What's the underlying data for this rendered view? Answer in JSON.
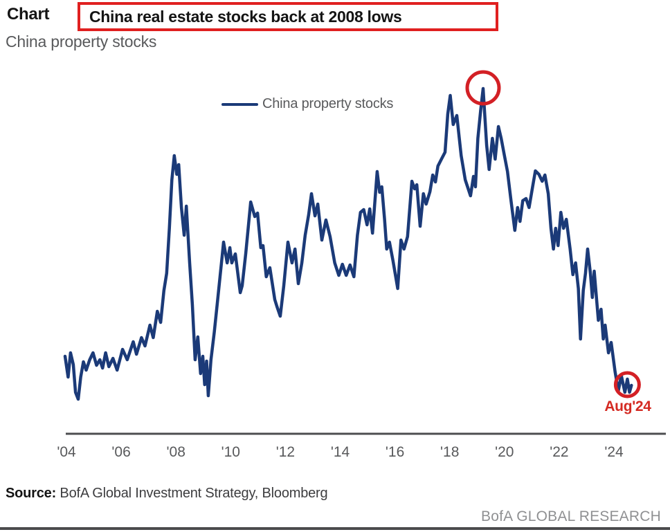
{
  "header": {
    "chart_label": "Chart",
    "title": "China real estate stocks back at 2008 lows",
    "subtitle": "China property stocks",
    "title_box_color": "#e02020"
  },
  "footer": {
    "source_label": "Source:",
    "source_text": " BofA Global Investment Strategy, Bloomberg",
    "branding": "BofA GLOBAL RESEARCH"
  },
  "chart_data": {
    "type": "line",
    "title": "China real estate stocks back at 2008 lows",
    "xlabel": "",
    "ylabel": "",
    "y_axis_shown": false,
    "grid": false,
    "legend_position": "top-center",
    "x_axis": {
      "tick_labels": [
        "'04",
        "'06",
        "'08",
        "'10",
        "'12",
        "'14",
        "'16",
        "'18",
        "'20",
        "'22",
        "'24"
      ],
      "tick_years": [
        2004,
        2006,
        2008,
        2010,
        2012,
        2014,
        2016,
        2018,
        2020,
        2022,
        2024
      ],
      "range": [
        2003.9,
        2024.8
      ]
    },
    "ylim": [
      0,
      105
    ],
    "series": [
      {
        "name": "China property stocks",
        "color": "#1b3a78",
        "points": [
          [
            2003.95,
            22.2
          ],
          [
            2004.06,
            16.2
          ],
          [
            2004.15,
            23.2
          ],
          [
            2004.25,
            19.8
          ],
          [
            2004.33,
            11.8
          ],
          [
            2004.43,
            9.8
          ],
          [
            2004.52,
            16.2
          ],
          [
            2004.62,
            20.6
          ],
          [
            2004.72,
            18.2
          ],
          [
            2004.85,
            21.2
          ],
          [
            2004.97,
            23.2
          ],
          [
            2005.1,
            19.6
          ],
          [
            2005.22,
            21.2
          ],
          [
            2005.32,
            18.8
          ],
          [
            2005.43,
            23.2
          ],
          [
            2005.55,
            19.2
          ],
          [
            2005.7,
            21.6
          ],
          [
            2005.85,
            18.2
          ],
          [
            2006.05,
            24.2
          ],
          [
            2006.22,
            21.2
          ],
          [
            2006.44,
            26.4
          ],
          [
            2006.56,
            22.8
          ],
          [
            2006.74,
            27.6
          ],
          [
            2006.87,
            25.2
          ],
          [
            2007.05,
            31.2
          ],
          [
            2007.17,
            27.6
          ],
          [
            2007.32,
            35.2
          ],
          [
            2007.44,
            32.0
          ],
          [
            2007.56,
            41.2
          ],
          [
            2007.66,
            46.2
          ],
          [
            2007.76,
            59.2
          ],
          [
            2007.85,
            73.2
          ],
          [
            2007.94,
            80.2
          ],
          [
            2008.03,
            74.8
          ],
          [
            2008.1,
            77.6
          ],
          [
            2008.2,
            65.2
          ],
          [
            2008.3,
            57.2
          ],
          [
            2008.38,
            65.6
          ],
          [
            2008.5,
            49.2
          ],
          [
            2008.6,
            37.2
          ],
          [
            2008.7,
            21.2
          ],
          [
            2008.8,
            27.8
          ],
          [
            2008.9,
            17.2
          ],
          [
            2008.98,
            22.2
          ],
          [
            2009.05,
            14.0
          ],
          [
            2009.12,
            20.8
          ],
          [
            2009.18,
            10.8
          ],
          [
            2009.28,
            21.2
          ],
          [
            2009.4,
            29.2
          ],
          [
            2009.52,
            38.2
          ],
          [
            2009.61,
            45.2
          ],
          [
            2009.69,
            51.2
          ],
          [
            2009.74,
            55.2
          ],
          [
            2009.87,
            49.2
          ],
          [
            2009.97,
            53.6
          ],
          [
            2010.04,
            49.2
          ],
          [
            2010.17,
            51.8
          ],
          [
            2010.35,
            40.6
          ],
          [
            2010.42,
            42.6
          ],
          [
            2010.55,
            52.0
          ],
          [
            2010.73,
            66.8
          ],
          [
            2010.88,
            62.6
          ],
          [
            2010.98,
            63.6
          ],
          [
            2011.1,
            53.6
          ],
          [
            2011.18,
            54.2
          ],
          [
            2011.3,
            45.2
          ],
          [
            2011.43,
            47.8
          ],
          [
            2011.61,
            38.6
          ],
          [
            2011.69,
            36.6
          ],
          [
            2011.81,
            33.8
          ],
          [
            2011.94,
            42.6
          ],
          [
            2012.09,
            55.2
          ],
          [
            2012.24,
            49.2
          ],
          [
            2012.35,
            53.2
          ],
          [
            2012.47,
            43.2
          ],
          [
            2012.6,
            49.2
          ],
          [
            2012.72,
            57.2
          ],
          [
            2012.85,
            63.2
          ],
          [
            2012.95,
            69.2
          ],
          [
            2013.08,
            62.8
          ],
          [
            2013.18,
            66.2
          ],
          [
            2013.33,
            55.8
          ],
          [
            2013.48,
            61.6
          ],
          [
            2013.63,
            56.8
          ],
          [
            2013.8,
            49.2
          ],
          [
            2013.95,
            45.6
          ],
          [
            2014.08,
            48.8
          ],
          [
            2014.22,
            45.6
          ],
          [
            2014.36,
            48.6
          ],
          [
            2014.5,
            45.2
          ],
          [
            2014.63,
            57.2
          ],
          [
            2014.74,
            63.8
          ],
          [
            2014.86,
            64.6
          ],
          [
            2014.98,
            60.2
          ],
          [
            2015.08,
            64.8
          ],
          [
            2015.18,
            57.8
          ],
          [
            2015.35,
            75.6
          ],
          [
            2015.44,
            69.6
          ],
          [
            2015.52,
            71.2
          ],
          [
            2015.62,
            61.8
          ],
          [
            2015.7,
            53.2
          ],
          [
            2015.8,
            55.2
          ],
          [
            2015.93,
            49.8
          ],
          [
            2016.1,
            41.8
          ],
          [
            2016.22,
            55.8
          ],
          [
            2016.33,
            53.2
          ],
          [
            2016.46,
            56.8
          ],
          [
            2016.62,
            72.8
          ],
          [
            2016.72,
            70.6
          ],
          [
            2016.8,
            71.8
          ],
          [
            2016.92,
            59.8
          ],
          [
            2017.04,
            69.2
          ],
          [
            2017.14,
            66.2
          ],
          [
            2017.28,
            69.8
          ],
          [
            2017.38,
            74.6
          ],
          [
            2017.48,
            72.6
          ],
          [
            2017.57,
            77.2
          ],
          [
            2017.7,
            79.2
          ],
          [
            2017.83,
            81.2
          ],
          [
            2017.93,
            92.2
          ],
          [
            2018.02,
            97.6
          ],
          [
            2018.13,
            89.2
          ],
          [
            2018.26,
            91.8
          ],
          [
            2018.42,
            80.2
          ],
          [
            2018.57,
            73.2
          ],
          [
            2018.76,
            68.6
          ],
          [
            2018.87,
            74.2
          ],
          [
            2018.94,
            71.2
          ],
          [
            2019.03,
            85.2
          ],
          [
            2019.13,
            93.2
          ],
          [
            2019.22,
            99.6
          ],
          [
            2019.35,
            83.2
          ],
          [
            2019.44,
            76.2
          ],
          [
            2019.56,
            85.2
          ],
          [
            2019.66,
            79.2
          ],
          [
            2019.78,
            88.6
          ],
          [
            2019.88,
            85.2
          ],
          [
            2020.0,
            80.2
          ],
          [
            2020.11,
            75.6
          ],
          [
            2020.24,
            67.2
          ],
          [
            2020.38,
            58.6
          ],
          [
            2020.48,
            65.2
          ],
          [
            2020.57,
            61.2
          ],
          [
            2020.67,
            67.2
          ],
          [
            2020.79,
            67.8
          ],
          [
            2020.9,
            65.2
          ],
          [
            2021.03,
            71.2
          ],
          [
            2021.13,
            75.8
          ],
          [
            2021.26,
            74.8
          ],
          [
            2021.38,
            72.8
          ],
          [
            2021.48,
            74.6
          ],
          [
            2021.6,
            69.2
          ],
          [
            2021.7,
            59.2
          ],
          [
            2021.79,
            53.2
          ],
          [
            2021.87,
            59.2
          ],
          [
            2021.96,
            54.2
          ],
          [
            2022.06,
            63.8
          ],
          [
            2022.16,
            59.2
          ],
          [
            2022.26,
            61.8
          ],
          [
            2022.4,
            53.2
          ],
          [
            2022.5,
            45.8
          ],
          [
            2022.6,
            49.2
          ],
          [
            2022.7,
            41.8
          ],
          [
            2022.78,
            27.2
          ],
          [
            2022.88,
            41.2
          ],
          [
            2022.96,
            46.2
          ],
          [
            2023.04,
            53.2
          ],
          [
            2023.14,
            46.2
          ],
          [
            2023.21,
            39.2
          ],
          [
            2023.28,
            46.8
          ],
          [
            2023.43,
            32.6
          ],
          [
            2023.53,
            35.8
          ],
          [
            2023.61,
            27.2
          ],
          [
            2023.68,
            31.2
          ],
          [
            2023.8,
            23.2
          ],
          [
            2023.9,
            26.2
          ],
          [
            2024.04,
            17.8
          ],
          [
            2024.16,
            12.2
          ],
          [
            2024.27,
            16.6
          ],
          [
            2024.4,
            11.8
          ],
          [
            2024.49,
            15.6
          ],
          [
            2024.57,
            11.8
          ],
          [
            2024.64,
            13.8
          ]
        ]
      }
    ],
    "annotations": [
      {
        "type": "circle",
        "x": 2019.22,
        "value": 99.8,
        "radius": 23,
        "color": "#d32025",
        "label": ""
      },
      {
        "type": "circle",
        "x": 2024.49,
        "value": 14.0,
        "radius": 17,
        "color": "#d32025",
        "label": "Aug'24"
      }
    ]
  }
}
